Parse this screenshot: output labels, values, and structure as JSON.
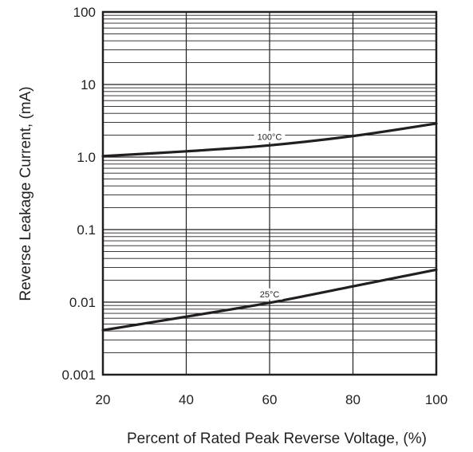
{
  "chart_data": {
    "type": "line",
    "title": "",
    "xlabel": "Percent of Rated Peak Reverse Voltage, (%)",
    "ylabel": "Reverse Leakage Current, (mA)",
    "xscale": "linear",
    "yscale": "log",
    "xlim": [
      20,
      100
    ],
    "ylim": [
      0.001,
      100
    ],
    "grid": true,
    "legend": "none",
    "x_ticks": [
      20,
      40,
      60,
      80,
      100
    ],
    "x_tick_labels": [
      "20",
      "40",
      "60",
      "80",
      "100"
    ],
    "y_ticks": [
      0.001,
      0.01,
      0.1,
      1,
      10,
      100
    ],
    "y_tick_labels": [
      "0.001",
      "0.01",
      "0.1",
      "1.0",
      "10",
      "100"
    ],
    "series": [
      {
        "name": "100°C",
        "x": [
          20,
          40,
          60,
          80,
          100
        ],
        "y": [
          1.03,
          1.2,
          1.45,
          1.95,
          2.9
        ]
      },
      {
        "name": "25°C",
        "x": [
          20,
          40,
          60,
          80,
          100
        ],
        "y": [
          0.0041,
          0.0063,
          0.0098,
          0.0165,
          0.028
        ]
      }
    ],
    "series_labels": [
      {
        "series": 0,
        "x": 60,
        "text": "100°C"
      },
      {
        "series": 1,
        "x": 60,
        "text": "25°C"
      }
    ],
    "colors": {
      "line": "#231f20",
      "grid": "#231f20",
      "background": "#ffffff"
    }
  }
}
